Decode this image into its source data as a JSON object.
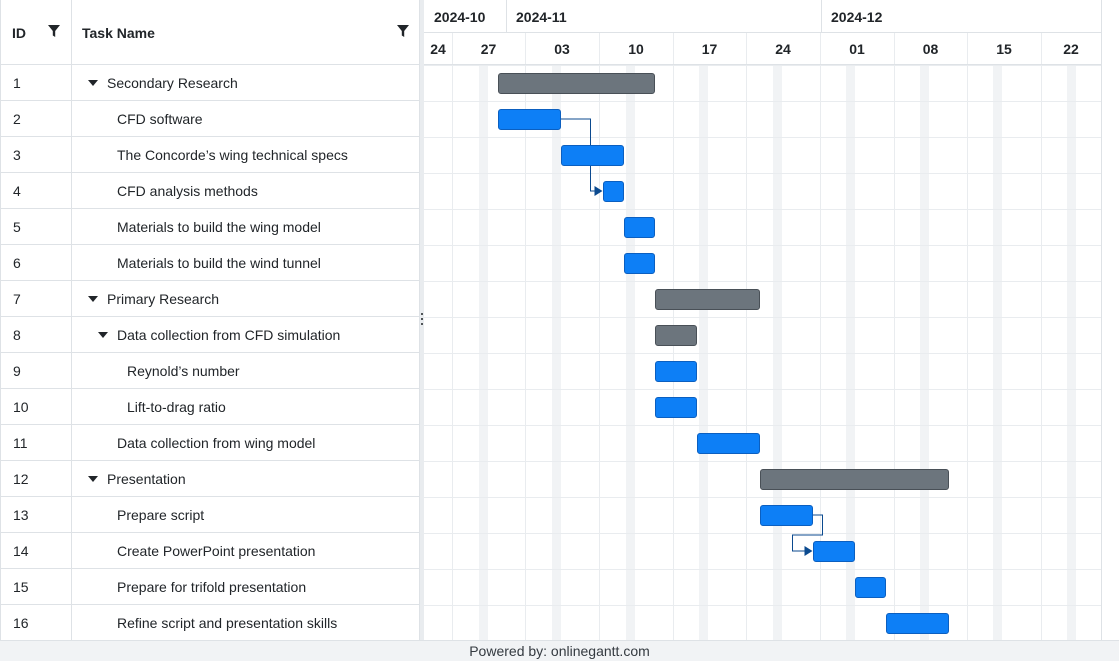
{
  "grid": {
    "columns": {
      "id": "ID",
      "name": "Task Name"
    }
  },
  "timeline": {
    "months": [
      "2024-10",
      "2024-11",
      "2024-12"
    ],
    "days": [
      "24",
      "27",
      "03",
      "10",
      "17",
      "24",
      "01",
      "08",
      "15",
      "22"
    ]
  },
  "tasks": [
    {
      "id": "1",
      "name": "Secondary Research",
      "level": 0,
      "group": true,
      "start": "2024-10-28",
      "end": "2024-11-12"
    },
    {
      "id": "2",
      "name": "CFD software",
      "level": 1,
      "group": false,
      "start": "2024-10-28",
      "end": "2024-11-03"
    },
    {
      "id": "3",
      "name": "The Concorde’s wing technical specs",
      "level": 1,
      "group": false,
      "start": "2024-11-03",
      "end": "2024-11-09"
    },
    {
      "id": "4",
      "name": "CFD analysis methods",
      "level": 1,
      "group": false,
      "start": "2024-11-07",
      "end": "2024-11-09"
    },
    {
      "id": "5",
      "name": "Materials to build the wing model",
      "level": 1,
      "group": false,
      "start": "2024-11-09",
      "end": "2024-11-12"
    },
    {
      "id": "6",
      "name": "Materials to build the wind tunnel",
      "level": 1,
      "group": false,
      "start": "2024-11-09",
      "end": "2024-11-12"
    },
    {
      "id": "7",
      "name": "Primary Research",
      "level": 0,
      "group": true,
      "start": "2024-11-12",
      "end": "2024-11-22"
    },
    {
      "id": "8",
      "name": "Data collection from CFD simulation",
      "level": 1,
      "group": true,
      "start": "2024-11-12",
      "end": "2024-11-16"
    },
    {
      "id": "9",
      "name": "Reynold’s number",
      "level": 2,
      "group": false,
      "start": "2024-11-12",
      "end": "2024-11-16"
    },
    {
      "id": "10",
      "name": "Lift-to-drag ratio",
      "level": 2,
      "group": false,
      "start": "2024-11-12",
      "end": "2024-11-16"
    },
    {
      "id": "11",
      "name": "Data collection from wing model",
      "level": 1,
      "group": false,
      "start": "2024-11-16",
      "end": "2024-11-22"
    },
    {
      "id": "12",
      "name": "Presentation",
      "level": 0,
      "group": true,
      "start": "2024-11-22",
      "end": "2024-12-10"
    },
    {
      "id": "13",
      "name": "Prepare script",
      "level": 1,
      "group": false,
      "start": "2024-11-22",
      "end": "2024-11-27"
    },
    {
      "id": "14",
      "name": "Create PowerPoint presentation",
      "level": 1,
      "group": false,
      "start": "2024-11-27",
      "end": "2024-12-01"
    },
    {
      "id": "15",
      "name": "Prepare for trifold presentation",
      "level": 1,
      "group": false,
      "start": "2024-12-01",
      "end": "2024-12-04"
    },
    {
      "id": "16",
      "name": "Refine script and presentation skills",
      "level": 1,
      "group": false,
      "start": "2024-12-04",
      "end": "2024-12-10"
    }
  ],
  "links": [
    {
      "from": "2",
      "to": "4"
    },
    {
      "from": "13",
      "to": "14"
    }
  ],
  "colors": {
    "task": "#0d7ff6",
    "group": "#6c757d"
  },
  "footer": {
    "text": "Powered by: onlinegantt.com"
  }
}
